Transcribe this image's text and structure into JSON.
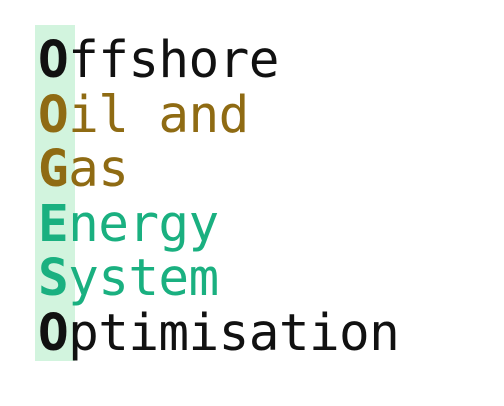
{
  "logo": {
    "lines": [
      {
        "initial": "O",
        "rest": "ffshore"
      },
      {
        "initial": "O",
        "rest": "il and"
      },
      {
        "initial": "G",
        "rest": "as"
      },
      {
        "initial": "E",
        "rest": "nergy"
      },
      {
        "initial": "S",
        "rest": "ystem"
      },
      {
        "initial": "O",
        "rest": "ptimisation"
      }
    ]
  },
  "colors": {
    "black": "#111111",
    "olive": "#8f6b13",
    "green": "#1ab080",
    "highlight": "#d2f4de"
  }
}
